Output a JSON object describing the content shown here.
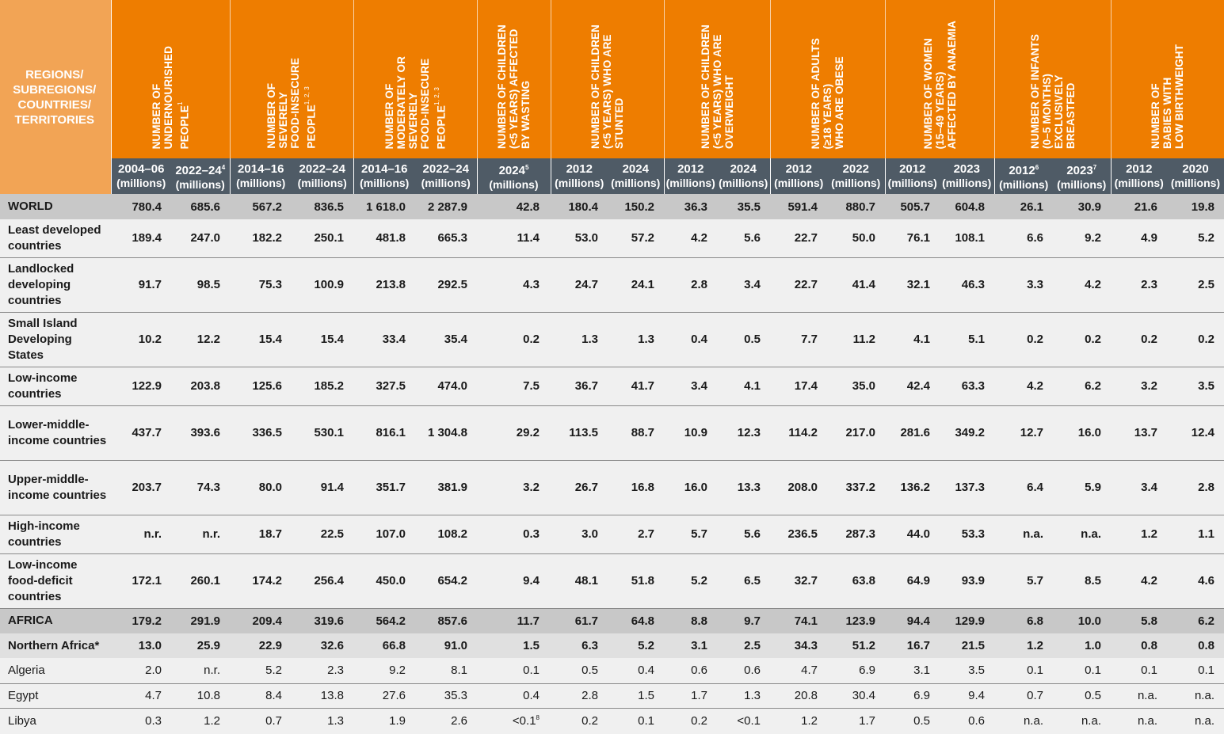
{
  "table": {
    "corner_header": "REGIONS/\nSUBREGIONS/\nCOUNTRIES/\nTERRITORIES",
    "groups": [
      {
        "title": "NUMBER OF\nUNDERNOURISHED\nPEOPLE",
        "sup": "1",
        "subs": [
          {
            "year": "2004–06",
            "sup": "",
            "unit": "(millions)"
          },
          {
            "year": "2022–24",
            "sup": "4",
            "unit": "(millions)"
          }
        ]
      },
      {
        "title": "NUMBER OF\nSEVERELY\nFOOD-INSECURE\nPEOPLE",
        "sup": "1, 2, 3",
        "subs": [
          {
            "year": "2014–16",
            "sup": "",
            "unit": "(millions)"
          },
          {
            "year": "2022–24",
            "sup": "",
            "unit": "(millions)"
          }
        ]
      },
      {
        "title": "NUMBER OF\nMODERATELY OR\nSEVERELY\nFOOD-INSECURE\nPEOPLE",
        "sup": "1, 2, 3",
        "subs": [
          {
            "year": "2014–16",
            "sup": "",
            "unit": "(millions)"
          },
          {
            "year": "2022–24",
            "sup": "",
            "unit": "(millions)"
          }
        ]
      },
      {
        "title": "NUMBER OF CHILDREN\n(<5 YEARS) AFFECTED\nBY WASTING",
        "sup": "",
        "subs": [
          {
            "year": "2024",
            "sup": "5",
            "unit": "(millions)"
          }
        ]
      },
      {
        "title": "NUMBER OF CHILDREN\n(<5 YEARS) WHO ARE\nSTUNTED",
        "sup": "",
        "subs": [
          {
            "year": "2012",
            "sup": "",
            "unit": "(millions)"
          },
          {
            "year": "2024",
            "sup": "",
            "unit": "(millions)"
          }
        ]
      },
      {
        "title": "NUMBER OF CHILDREN\n(<5 YEARS) WHO ARE\nOVERWEIGHT",
        "sup": "",
        "subs": [
          {
            "year": "2012",
            "sup": "",
            "unit": "(millions)"
          },
          {
            "year": "2024",
            "sup": "",
            "unit": "(millions)"
          }
        ]
      },
      {
        "title": "NUMBER OF ADULTS\n(≥18 YEARS)\nWHO ARE OBESE",
        "sup": "",
        "subs": [
          {
            "year": "2012",
            "sup": "",
            "unit": "(millions)"
          },
          {
            "year": "2022",
            "sup": "",
            "unit": "(millions)"
          }
        ]
      },
      {
        "title": "NUMBER OF WOMEN\n(15–49 YEARS)\nAFFECTED BY ANAEMIA",
        "sup": "",
        "subs": [
          {
            "year": "2012",
            "sup": "",
            "unit": "(millions)"
          },
          {
            "year": "2023",
            "sup": "",
            "unit": "(millions)"
          }
        ]
      },
      {
        "title": "NUMBER OF INFANTS\n(0–5 MONTHS)\nEXCLUSIVELY\nBREASTFED",
        "sup": "",
        "subs": [
          {
            "year": "2012",
            "sup": "6",
            "unit": "(millions)"
          },
          {
            "year": "2023",
            "sup": "7",
            "unit": "(millions)"
          }
        ]
      },
      {
        "title": "NUMBER OF\nBABIES WITH\nLOW BIRTHWEIGHT",
        "sup": "",
        "subs": [
          {
            "year": "2012",
            "sup": "",
            "unit": "(millions)"
          },
          {
            "year": "2020",
            "sup": "",
            "unit": "(millions)"
          }
        ]
      }
    ],
    "rows": [
      {
        "name": "WORLD",
        "type": "world",
        "values": [
          "780.4",
          "685.6",
          "567.2",
          "836.5",
          "1 618.0",
          "2 287.9",
          "42.8",
          "180.4",
          "150.2",
          "36.3",
          "35.5",
          "591.4",
          "880.7",
          "505.7",
          "604.8",
          "26.1",
          "30.9",
          "21.6",
          "19.8"
        ]
      },
      {
        "name": "Least developed countries",
        "type": "bold",
        "values": [
          "189.4",
          "247.0",
          "182.2",
          "250.1",
          "481.8",
          "665.3",
          "11.4",
          "53.0",
          "57.2",
          "4.2",
          "5.6",
          "22.7",
          "50.0",
          "76.1",
          "108.1",
          "6.6",
          "9.2",
          "4.9",
          "5.2"
        ]
      },
      {
        "name": "Landlocked developing countries",
        "type": "bold",
        "values": [
          "91.7",
          "98.5",
          "75.3",
          "100.9",
          "213.8",
          "292.5",
          "4.3",
          "24.7",
          "24.1",
          "2.8",
          "3.4",
          "22.7",
          "41.4",
          "32.1",
          "46.3",
          "3.3",
          "4.2",
          "2.3",
          "2.5"
        ]
      },
      {
        "name": "Small Island Developing States",
        "type": "bold",
        "values": [
          "10.2",
          "12.2",
          "15.4",
          "15.4",
          "33.4",
          "35.4",
          "0.2",
          "1.3",
          "1.3",
          "0.4",
          "0.5",
          "7.7",
          "11.2",
          "4.1",
          "5.1",
          "0.2",
          "0.2",
          "0.2",
          "0.2"
        ]
      },
      {
        "name": "Low-income countries",
        "type": "bold",
        "values": [
          "122.9",
          "203.8",
          "125.6",
          "185.2",
          "327.5",
          "474.0",
          "7.5",
          "36.7",
          "41.7",
          "3.4",
          "4.1",
          "17.4",
          "35.0",
          "42.4",
          "63.3",
          "4.2",
          "6.2",
          "3.2",
          "3.5"
        ]
      },
      {
        "name": "Lower-middle-income countries",
        "type": "bold",
        "values": [
          "437.7",
          "393.6",
          "336.5",
          "530.1",
          "816.1",
          "1 304.8",
          "29.2",
          "113.5",
          "88.7",
          "10.9",
          "12.3",
          "114.2",
          "217.0",
          "281.6",
          "349.2",
          "12.7",
          "16.0",
          "13.7",
          "12.4"
        ]
      },
      {
        "name": "Upper-middle-income countries",
        "type": "bold",
        "values": [
          "203.7",
          "74.3",
          "80.0",
          "91.4",
          "351.7",
          "381.9",
          "3.2",
          "26.7",
          "16.8",
          "16.0",
          "13.3",
          "208.0",
          "337.2",
          "136.2",
          "137.3",
          "6.4",
          "5.9",
          "3.4",
          "2.8"
        ]
      },
      {
        "name": "High-income countries",
        "type": "bold",
        "values": [
          "n.r.",
          "n.r.",
          "18.7",
          "22.5",
          "107.0",
          "108.2",
          "0.3",
          "3.0",
          "2.7",
          "5.7",
          "5.6",
          "236.5",
          "287.3",
          "44.0",
          "53.3",
          "n.a.",
          "n.a.",
          "1.2",
          "1.1"
        ]
      },
      {
        "name": "Low-income food-deficit countries",
        "type": "bold",
        "values": [
          "172.1",
          "260.1",
          "174.2",
          "256.4",
          "450.0",
          "654.2",
          "9.4",
          "48.1",
          "51.8",
          "5.2",
          "6.5",
          "32.7",
          "63.8",
          "64.9",
          "93.9",
          "5.7",
          "8.5",
          "4.2",
          "4.6"
        ]
      },
      {
        "name": "AFRICA",
        "type": "africa",
        "values": [
          "179.2",
          "291.9",
          "209.4",
          "319.6",
          "564.2",
          "857.6",
          "11.7",
          "61.7",
          "64.8",
          "8.8",
          "9.7",
          "74.1",
          "123.9",
          "94.4",
          "129.9",
          "6.8",
          "10.0",
          "5.8",
          "6.2"
        ]
      },
      {
        "name": "Northern Africa*",
        "type": "sub",
        "values": [
          "13.0",
          "25.9",
          "22.9",
          "32.6",
          "66.8",
          "91.0",
          "1.5",
          "6.3",
          "5.2",
          "3.1",
          "2.5",
          "34.3",
          "51.2",
          "16.7",
          "21.5",
          "1.2",
          "1.0",
          "0.8",
          "0.8"
        ]
      },
      {
        "name": "Algeria",
        "type": "country",
        "values": [
          "2.0",
          "n.r.",
          "5.2",
          "2.3",
          "9.2",
          "8.1",
          "0.1",
          "0.5",
          "0.4",
          "0.6",
          "0.6",
          "4.7",
          "6.9",
          "3.1",
          "3.5",
          "0.1",
          "0.1",
          "0.1",
          "0.1"
        ]
      },
      {
        "name": "Egypt",
        "type": "country",
        "values": [
          "4.7",
          "10.8",
          "8.4",
          "13.8",
          "27.6",
          "35.3",
          "0.4",
          "2.8",
          "1.5",
          "1.7",
          "1.3",
          "20.8",
          "30.4",
          "6.9",
          "9.4",
          "0.7",
          "0.5",
          "n.a.",
          "n.a."
        ]
      },
      {
        "name": "Libya",
        "type": "country",
        "values": [
          "0.3",
          "1.2",
          "0.7",
          "1.3",
          "1.9",
          "2.6",
          "<0.1",
          "0.2",
          "0.1",
          "0.2",
          "<0.1",
          "1.2",
          "1.7",
          "0.5",
          "0.6",
          "n.a.",
          "n.a.",
          "n.a.",
          "n.a."
        ],
        "sups": {
          "6": "8"
        }
      }
    ]
  },
  "colors": {
    "header_orange": "#ee7d00",
    "corner_orange": "#f2a455",
    "subheader_slate": "#4f5b66",
    "highlight_row": "#c8c8c8",
    "subregion_row": "#e0e0e0",
    "body_row": "#f0f0f0"
  }
}
